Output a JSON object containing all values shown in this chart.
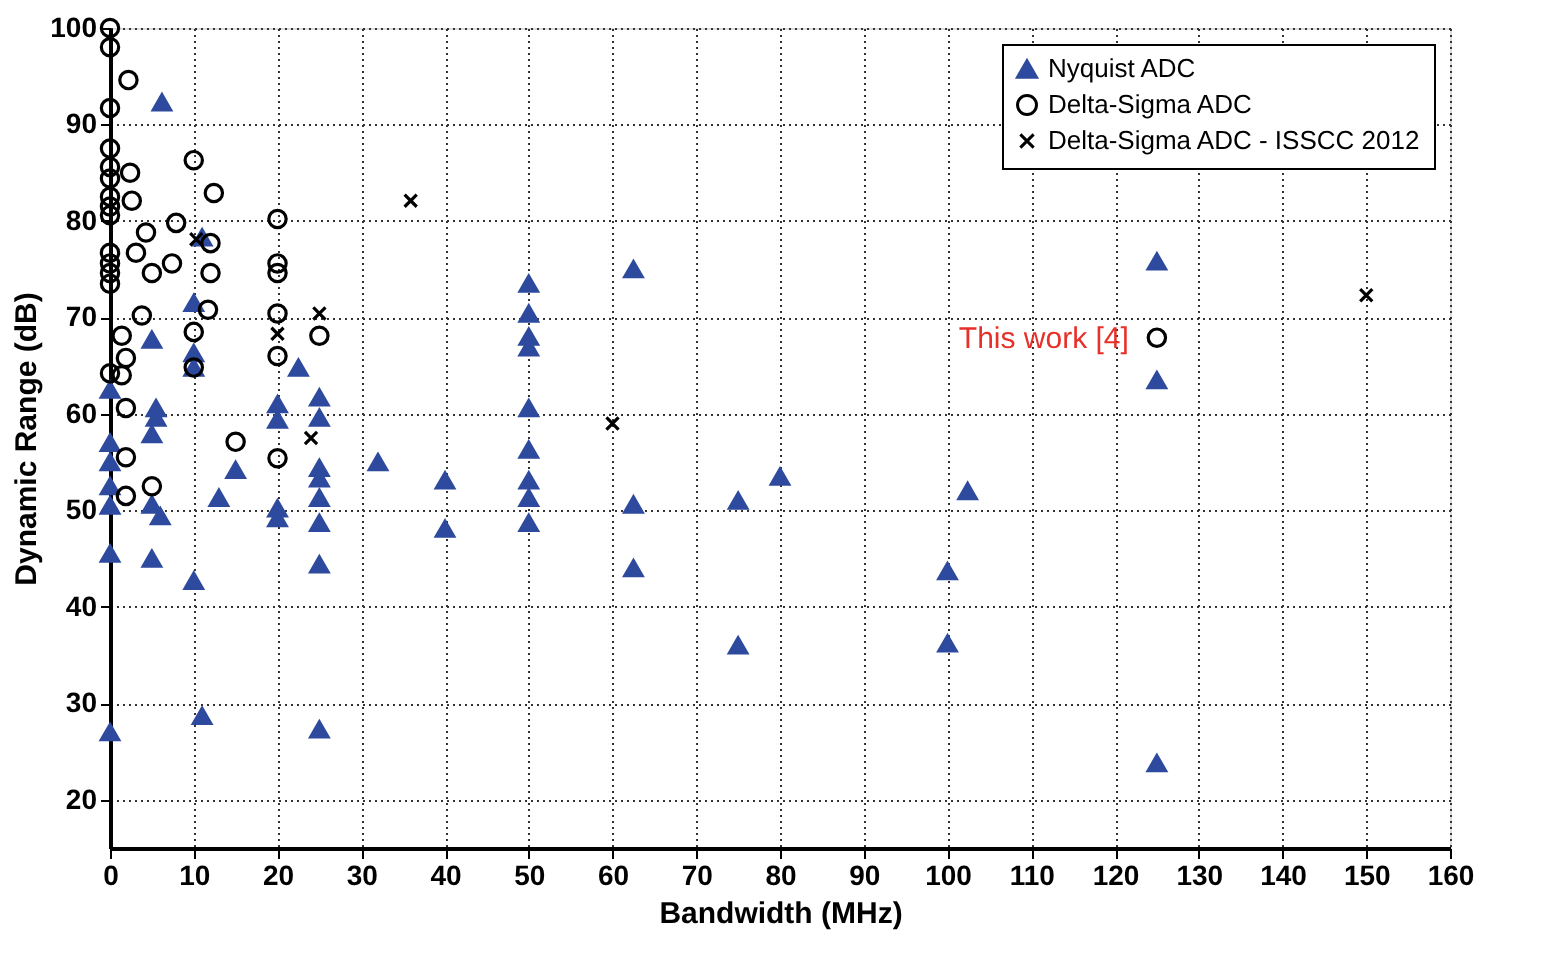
{
  "chart_data": {
    "type": "scatter",
    "xlabel": "Bandwidth (MHz)",
    "ylabel": "Dynamic Range (dB)",
    "xlim": [
      0,
      160
    ],
    "xticks": [
      0,
      10,
      20,
      30,
      40,
      50,
      60,
      70,
      80,
      90,
      100,
      110,
      120,
      130,
      140,
      150,
      160
    ],
    "ylim": [
      15,
      100
    ],
    "yticks": [
      20,
      30,
      40,
      50,
      60,
      70,
      80,
      90,
      100
    ],
    "grid": true,
    "legend": "top right",
    "annotations": [
      {
        "text": "This work [4]",
        "x": 125,
        "y": 67.9
      }
    ],
    "series": [
      {
        "name": "Nyquist ADC",
        "color": "#2e4a9e",
        "marker": "triangle",
        "x": [
          6.2,
          11,
          10,
          5,
          10,
          10,
          22.5,
          0,
          5.5,
          5.5,
          20,
          20,
          25,
          25,
          5,
          0,
          0,
          0,
          0,
          0,
          5,
          6,
          5,
          10,
          13,
          15,
          20,
          20,
          25,
          25,
          25,
          25,
          25,
          25,
          0,
          11,
          32,
          40,
          40,
          62.5,
          50,
          50,
          50,
          50,
          50,
          50,
          50,
          50,
          50,
          62.5,
          62.5,
          75,
          75,
          80,
          100,
          100,
          125,
          125,
          102.4,
          125
        ],
        "values": [
          92.3,
          78.3,
          71.5,
          67.7,
          66.3,
          64.8,
          64.8,
          62.5,
          60.6,
          59.6,
          61,
          59.4,
          61.7,
          59.6,
          57.9,
          57,
          55,
          52.5,
          50.5,
          45.5,
          45,
          49.4,
          50.6,
          42.7,
          51.3,
          54.2,
          50.2,
          49.2,
          54.4,
          53.3,
          51.3,
          48.7,
          44.4,
          27.3,
          27,
          28.7,
          55,
          53.1,
          48.1,
          75,
          73.5,
          70.4,
          68,
          66.9,
          60.6,
          56.3,
          53.1,
          51.3,
          48.7,
          50.6,
          44,
          51,
          36,
          53.5,
          43.7,
          36.2,
          75.8,
          63.5,
          52,
          23.8
        ]
      },
      {
        "name": "Delta-Sigma ADC",
        "color": "#000000",
        "marker": "circle",
        "x": [
          0,
          0,
          0,
          0,
          0,
          0,
          0,
          0,
          0,
          0,
          0,
          0,
          0,
          0,
          2.2,
          2.4,
          2.6,
          4.3,
          3.1,
          5,
          7.4,
          7.9,
          10,
          12.4,
          12,
          12,
          11.7,
          10,
          10,
          3.8,
          1.4,
          1.9,
          1.4,
          1.9,
          1.9,
          1.9,
          5,
          15,
          20,
          20,
          20,
          20,
          20,
          20,
          25,
          125
        ],
        "values": [
          100,
          98,
          91.7,
          87.5,
          85.6,
          84.4,
          82.5,
          81.5,
          80.6,
          76.7,
          75.6,
          74.6,
          73.5,
          64.2,
          94.6,
          85,
          82.1,
          78.8,
          76.7,
          74.6,
          75.6,
          79.8,
          86.3,
          82.9,
          77.7,
          74.6,
          70.8,
          68.5,
          64.8,
          70.2,
          68.1,
          65.8,
          64,
          60.6,
          55.5,
          51.5,
          52.5,
          57.1,
          55.4,
          80.2,
          75.6,
          74.6,
          70.4,
          66,
          68.1,
          67.9
        ]
      },
      {
        "name": "Delta-Sigma ADC - ISSCC 2012",
        "color": "#000000",
        "marker": "cross",
        "x": [
          35.9,
          10.3,
          25,
          20,
          24,
          60,
          150
        ],
        "values": [
          82.1,
          78.1,
          70.4,
          68.3,
          57.5,
          59,
          72.3
        ]
      }
    ]
  }
}
